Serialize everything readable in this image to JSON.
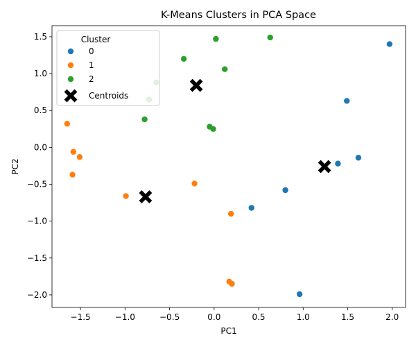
{
  "chart_data": {
    "type": "scatter",
    "title": "K-Means Clusters in PCA Space",
    "xlabel": "PC1",
    "ylabel": "PC2",
    "xlim": [
      -1.82,
      2.15
    ],
    "ylim": [
      -2.17,
      1.65
    ],
    "xticks": [
      -1.5,
      -1.0,
      -0.5,
      0.0,
      0.5,
      1.0,
      1.5,
      2.0
    ],
    "xtick_labels": [
      "−1.5",
      "−1.0",
      "−0.5",
      "0.0",
      "0.5",
      "1.0",
      "1.5",
      "2.0"
    ],
    "yticks": [
      -2.0,
      -1.5,
      -1.0,
      -0.5,
      0.0,
      0.5,
      1.0,
      1.5
    ],
    "ytick_labels": [
      "−2.0",
      "−1.5",
      "−1.0",
      "−0.5",
      "0.0",
      "0.5",
      "1.0",
      "1.5"
    ],
    "grid": false,
    "legend": {
      "title": "Cluster",
      "position": "top-left"
    },
    "series": [
      {
        "name": "0",
        "color": "#1f77b4",
        "points": [
          [
            1.97,
            1.4
          ],
          [
            1.49,
            0.63
          ],
          [
            1.62,
            -0.14
          ],
          [
            1.39,
            -0.22
          ],
          [
            0.8,
            -0.58
          ],
          [
            0.42,
            -0.82
          ],
          [
            0.96,
            -1.99
          ]
        ]
      },
      {
        "name": "1",
        "color": "#ff7f0e",
        "points": [
          [
            -1.65,
            0.32
          ],
          [
            -1.58,
            -0.06
          ],
          [
            -1.51,
            -0.13
          ],
          [
            -1.59,
            -0.37
          ],
          [
            -0.99,
            -0.66
          ],
          [
            -0.22,
            -0.49
          ],
          [
            0.19,
            -0.9
          ],
          [
            0.17,
            -1.82
          ],
          [
            0.2,
            -1.85
          ]
        ]
      },
      {
        "name": "2",
        "color": "#2ca02c",
        "points": [
          [
            0.02,
            1.47
          ],
          [
            0.63,
            1.49
          ],
          [
            -0.34,
            1.2
          ],
          [
            0.12,
            1.06
          ],
          [
            -0.65,
            0.88
          ],
          [
            -0.73,
            0.65
          ],
          [
            -0.78,
            0.38
          ],
          [
            -0.05,
            0.28
          ],
          [
            -0.01,
            0.25
          ]
        ]
      }
    ],
    "centroids": {
      "name": "Centroids",
      "color": "#000000",
      "marker": "X",
      "points": [
        [
          -0.2,
          0.84
        ],
        [
          1.24,
          -0.26
        ],
        [
          -0.77,
          -0.67
        ]
      ]
    }
  }
}
